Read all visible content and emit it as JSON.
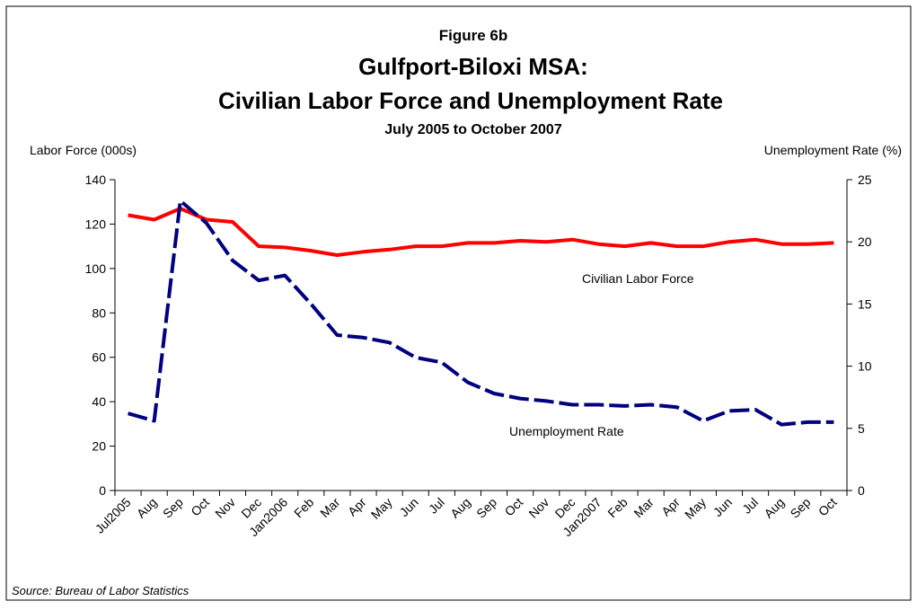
{
  "chart_data": {
    "type": "line",
    "figure_label": "Figure  6b",
    "title_lines": [
      "Gulfport-Biloxi MSA:",
      "Civilian Labor Force and Unemployment Rate"
    ],
    "subtitle": "July 2005 to October 2007",
    "y_label": "Labor Force (000s)",
    "y2_label": "Unemployment Rate (%)",
    "source": "Source:  Bureau of Labor Statistics",
    "categories": [
      "Jul2005",
      "Aug",
      "Sep",
      "Oct",
      "Nov",
      "Dec",
      "Jan2006",
      "Feb",
      "Mar",
      "Apr",
      "May",
      "Jun",
      "Jul",
      "Aug",
      "Sep",
      "Oct",
      "Nov",
      "Dec",
      "Jan2007",
      "Feb",
      "Mar",
      "Apr",
      "May",
      "Jun",
      "Jul",
      "Aug",
      "Sep",
      "Oct"
    ],
    "series": [
      {
        "name": "Civilian Labor Force",
        "color": "#ff0000",
        "dashed": false,
        "axis": "y",
        "values": [
          124,
          122,
          127,
          122,
          121,
          110,
          109.5,
          108,
          106,
          107.5,
          108.5,
          110,
          110,
          111.5,
          111.5,
          112.5,
          112,
          113,
          111,
          110,
          111.5,
          110,
          110,
          112,
          113,
          111,
          111,
          111.5
        ]
      },
      {
        "name": "Unemployment Rate",
        "color": "#000080",
        "dashed": true,
        "axis": "y2",
        "values": [
          6.2,
          5.6,
          23.3,
          21.5,
          18.5,
          16.9,
          17.3,
          15,
          12.5,
          12.3,
          11.9,
          10.7,
          10.3,
          8.7,
          7.8,
          7.4,
          7.2,
          6.9,
          6.9,
          6.8,
          6.9,
          6.7,
          5.6,
          6.4,
          6.5,
          5.3,
          5.5,
          5.5
        ]
      }
    ],
    "ylim": [
      0,
      140
    ],
    "yticks": [
      0,
      20,
      40,
      60,
      80,
      100,
      120,
      140
    ],
    "y2lim": [
      0,
      25
    ],
    "y2ticks": [
      0,
      5,
      10,
      15,
      20,
      25
    ],
    "grid": false
  }
}
